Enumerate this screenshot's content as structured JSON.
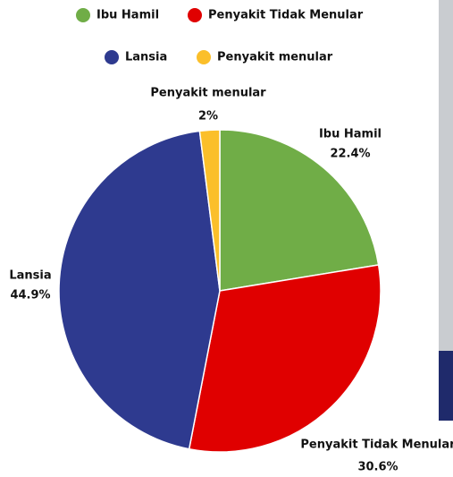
{
  "chart_data": {
    "type": "pie",
    "categories": [
      "Ibu Hamil",
      "Penyakit Tidak Menular",
      "Lansia",
      "Penyakit menular"
    ],
    "values": [
      22.4,
      30.6,
      44.9,
      2
    ],
    "value_labels": [
      "22.4%",
      "30.6%",
      "44.9%",
      "2%"
    ],
    "colors": [
      "#70ad47",
      "#e00000",
      "#2e3a8f",
      "#fbbf2a"
    ]
  }
}
